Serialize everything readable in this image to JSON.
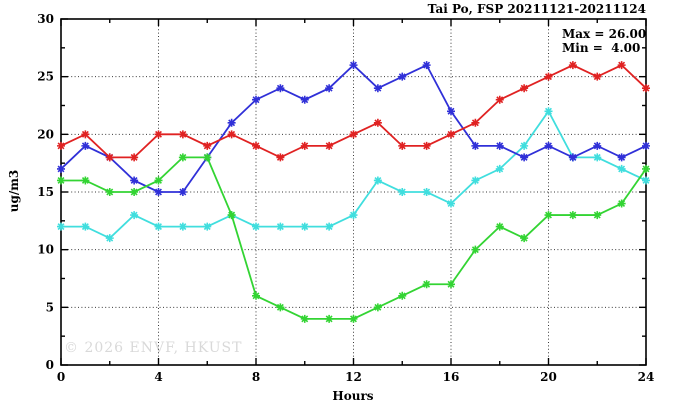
{
  "header": {
    "title": "Tai Po, FSP 20211121-20211124"
  },
  "annotations": {
    "max_label": "Max = 26.00",
    "min_label": "Min =  4.00"
  },
  "watermark": "© 2026 ENVF, HKUST",
  "chart_data": {
    "type": "line",
    "title": "Tai Po, FSP 20211121-20211124",
    "xlabel": "Hours",
    "ylabel": "ug/m3",
    "xlim": [
      0,
      24
    ],
    "ylim": [
      0,
      30
    ],
    "xticks": [
      0,
      4,
      8,
      12,
      16,
      20,
      24
    ],
    "yticks": [
      0,
      5,
      10,
      15,
      20,
      25,
      30
    ],
    "x_minor_step": 2,
    "y_minor_step": 2.5,
    "grid": true,
    "legend": "none",
    "x": [
      0,
      1,
      2,
      3,
      4,
      5,
      6,
      7,
      8,
      9,
      10,
      11,
      12,
      13,
      14,
      15,
      16,
      17,
      18,
      19,
      20,
      21,
      22,
      23,
      24
    ],
    "series": [
      {
        "name": "cyan-series",
        "color": "#40dede",
        "values": [
          12,
          12,
          11,
          13,
          12,
          12,
          12,
          13,
          12,
          12,
          12,
          12,
          13,
          16,
          15,
          15,
          14,
          16,
          17,
          19,
          22,
          18,
          18,
          17,
          16
        ]
      },
      {
        "name": "blue-series",
        "color": "#3030d8",
        "values": [
          17,
          19,
          18,
          16,
          15,
          15,
          18,
          21,
          23,
          24,
          23,
          24,
          26,
          24,
          25,
          26,
          22,
          19,
          19,
          18,
          19,
          18,
          19,
          18,
          19
        ]
      },
      {
        "name": "green-series",
        "color": "#33d433",
        "values": [
          16,
          16,
          15,
          15,
          16,
          18,
          18,
          13,
          6,
          5,
          4,
          4,
          4,
          5,
          6,
          7,
          7,
          10,
          12,
          11,
          13,
          13,
          13,
          14,
          17
        ]
      },
      {
        "name": "red-series",
        "color": "#e02222",
        "values": [
          19,
          20,
          18,
          18,
          20,
          20,
          19,
          20,
          19,
          18,
          19,
          19,
          20,
          21,
          19,
          19,
          20,
          21,
          23,
          24,
          25,
          26,
          25,
          26,
          24
        ]
      }
    ],
    "stat_max": 26.0,
    "stat_min": 4.0
  }
}
